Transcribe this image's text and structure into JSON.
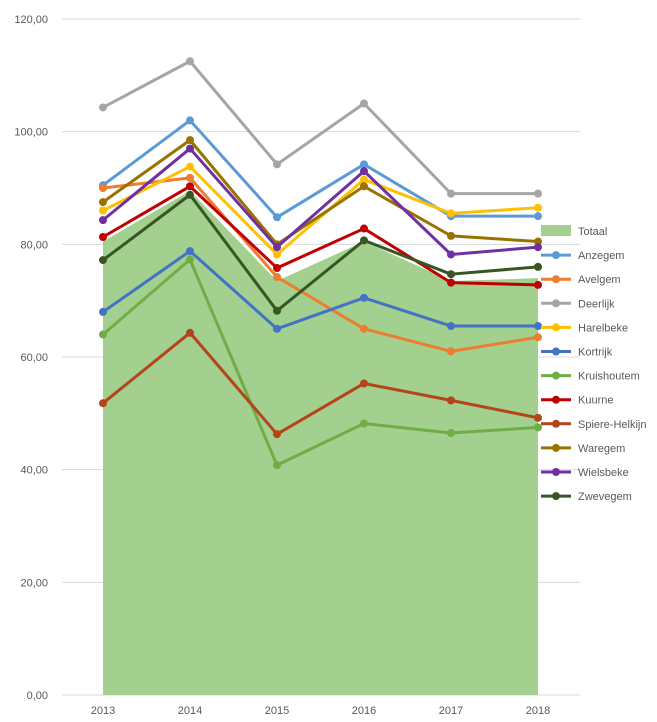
{
  "chart_data": {
    "type": "line",
    "title": "",
    "xlabel": "",
    "ylabel": "",
    "ylim": [
      0,
      120
    ],
    "y_ticks": [
      "0,00",
      "20,00",
      "40,00",
      "60,00",
      "80,00",
      "100,00",
      "120,00"
    ],
    "x": [
      "2013",
      "2014",
      "2015",
      "2016",
      "2017",
      "2018"
    ],
    "grid": true,
    "legend_position": "right",
    "area_series": {
      "name": "Totaal",
      "color": "#a3cf8f",
      "values": [
        80.5,
        89.5,
        73.5,
        80.5,
        73.5,
        74.0
      ]
    },
    "series": [
      {
        "name": "Anzegem",
        "color": "#5b9bd5",
        "values": [
          90.5,
          102.0,
          84.8,
          94.2,
          85.0,
          85.0
        ]
      },
      {
        "name": "Avelgem",
        "color": "#ed7d31",
        "values": [
          90.0,
          91.8,
          74.2,
          65.0,
          61.0,
          63.5
        ]
      },
      {
        "name": "Deerlijk",
        "color": "#a5a5a5",
        "values": [
          104.3,
          112.5,
          94.2,
          105.0,
          89.0,
          89.0
        ]
      },
      {
        "name": "Harelbeke",
        "color": "#ffc000",
        "values": [
          86.0,
          93.8,
          78.2,
          91.5,
          85.5,
          86.5
        ]
      },
      {
        "name": "Kortrijk",
        "color": "#4472c4",
        "values": [
          68.0,
          78.8,
          65.0,
          70.5,
          65.5,
          65.5
        ]
      },
      {
        "name": "Kruishoutem",
        "color": "#70ad47",
        "values": [
          64.0,
          77.3,
          40.8,
          48.2,
          46.5,
          47.5
        ]
      },
      {
        "name": "Kuurne",
        "color": "#c00000",
        "values": [
          81.3,
          90.3,
          75.8,
          82.8,
          73.2,
          72.8
        ]
      },
      {
        "name": "Spiere-Helkijn",
        "color": "#b4441a",
        "values": [
          51.8,
          64.3,
          46.3,
          55.3,
          52.3,
          49.2
        ]
      },
      {
        "name": "Waregem",
        "color": "#997300",
        "values": [
          87.5,
          98.5,
          80.0,
          90.3,
          81.5,
          80.5
        ]
      },
      {
        "name": "Wielsbeke",
        "color": "#7030a0",
        "values": [
          84.3,
          97.0,
          79.5,
          93.0,
          78.2,
          79.5
        ]
      },
      {
        "name": "Zwevegem",
        "color": "#375623",
        "values": [
          77.2,
          88.8,
          68.2,
          80.7,
          74.7,
          76.0
        ]
      }
    ]
  }
}
